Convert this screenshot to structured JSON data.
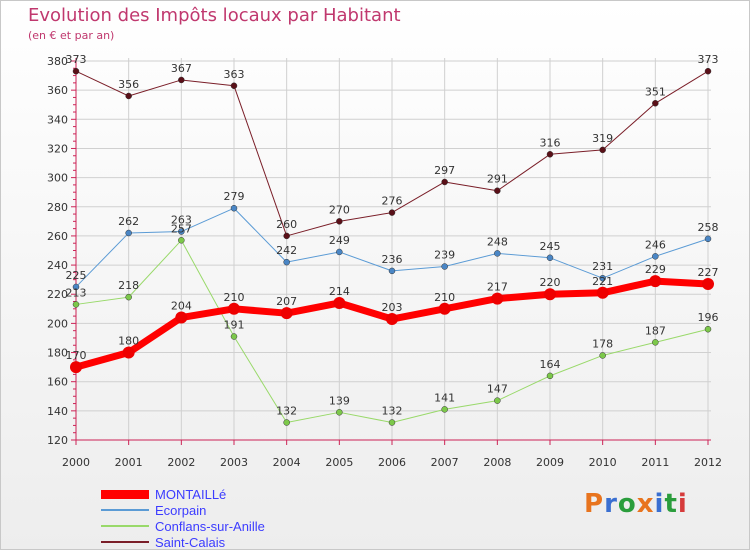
{
  "title": "Evolution des Impôts locaux par Habitant",
  "subtitle": "(en € et par an)",
  "logo": {
    "text": "Proxiti",
    "colors": [
      "#e8741e",
      "#3a6fd1",
      "#2a9d3c",
      "#e8741e",
      "#3a6fd1",
      "#2a9d3c",
      "#d63b3b"
    ]
  },
  "chart_data": {
    "type": "line",
    "title": "Evolution des Impôts locaux par Habitant",
    "subtitle": "(en € et par an)",
    "xlabel": "",
    "ylabel": "",
    "x": [
      "2000",
      "2001",
      "2002",
      "2003",
      "2004",
      "2005",
      "2006",
      "2007",
      "2008",
      "2009",
      "2010",
      "2011",
      "2012"
    ],
    "ylim": [
      120,
      380
    ],
    "yticks": [
      120,
      140,
      160,
      180,
      200,
      220,
      240,
      260,
      280,
      300,
      320,
      340,
      360,
      380
    ],
    "grid": true,
    "legend_position": "bottom-left",
    "series": [
      {
        "name": "Saint-Calais",
        "color": "#7a1e28",
        "fill": "#5a1018",
        "width": 1,
        "values": [
          373,
          356,
          367,
          363,
          260,
          270,
          276,
          297,
          291,
          316,
          319,
          351,
          373
        ]
      },
      {
        "name": "Ecorpain",
        "color": "#5b9bd5",
        "fill": "#4a86c5",
        "width": 1,
        "values": [
          225,
          262,
          263,
          279,
          242,
          249,
          236,
          239,
          248,
          245,
          231,
          246,
          258
        ]
      },
      {
        "name": "Conflans-sur-Anille",
        "color": "#99d96a",
        "fill": "#7cc84a",
        "width": 1,
        "values": [
          213,
          218,
          257,
          191,
          132,
          139,
          132,
          141,
          147,
          164,
          178,
          187,
          196
        ]
      },
      {
        "name": "MONTAILLé",
        "color": "#ff0000",
        "fill": "#ee0000",
        "width": 7,
        "values": [
          170,
          180,
          204,
          210,
          207,
          214,
          203,
          210,
          217,
          220,
          221,
          229,
          227
        ]
      }
    ]
  }
}
